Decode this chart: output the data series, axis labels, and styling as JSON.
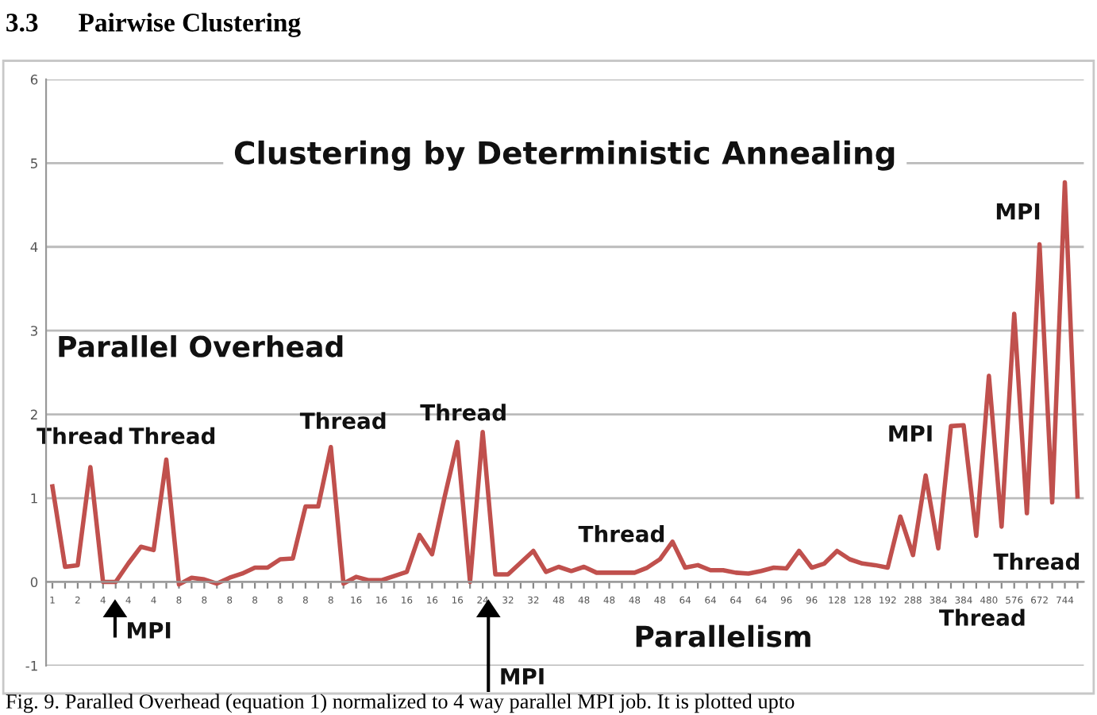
{
  "chart_data": {
    "type": "line",
    "title": "Clustering by Deterministic Annealing",
    "xlabel": "Parallelism",
    "ylabel": "Parallel Overhead",
    "categories": [
      "1",
      null,
      "2",
      null,
      "4",
      null,
      "4",
      null,
      "4",
      null,
      "8",
      null,
      "8",
      null,
      "8",
      null,
      "8",
      null,
      "8",
      null,
      "8",
      null,
      "8",
      null,
      "16",
      null,
      "16",
      null,
      "16",
      null,
      "16",
      null,
      "16",
      null,
      "24",
      null,
      "32",
      null,
      "32",
      null,
      "48",
      null,
      "48",
      null,
      "48",
      null,
      "48",
      null,
      "48",
      null,
      "64",
      null,
      "64",
      null,
      "64",
      null,
      "64",
      null,
      "96",
      null,
      "96",
      null,
      "128",
      null,
      "128",
      null,
      "192",
      null,
      "288",
      null,
      "384",
      null,
      "384",
      null,
      "480",
      null,
      "576",
      null,
      "672",
      null,
      "744",
      null
    ],
    "series": [
      {
        "color": "#c0504d",
        "values": [
          1.14,
          0.18,
          0.2,
          1.37,
          0.0,
          0.0,
          0.22,
          0.42,
          0.38,
          1.46,
          -0.03,
          0.05,
          0.03,
          -0.02,
          0.05,
          0.1,
          0.17,
          0.17,
          0.27,
          0.28,
          0.9,
          0.9,
          1.61,
          -0.02,
          0.06,
          0.02,
          0.02,
          0.07,
          0.12,
          0.56,
          0.33,
          1.02,
          1.67,
          0.0,
          1.79,
          0.09,
          0.09,
          0.23,
          0.37,
          0.12,
          0.18,
          0.13,
          0.18,
          0.11,
          0.11,
          0.11,
          0.11,
          0.17,
          0.27,
          0.48,
          0.17,
          0.2,
          0.14,
          0.14,
          0.11,
          0.1,
          0.13,
          0.17,
          0.16,
          0.37,
          0.17,
          0.22,
          0.37,
          0.27,
          0.22,
          0.2,
          0.17,
          0.78,
          0.32,
          1.27,
          0.4,
          1.86,
          1.87,
          0.55,
          2.46,
          0.66,
          3.2,
          0.82,
          4.03,
          0.95,
          4.77,
          1.02
        ]
      }
    ],
    "ylim": [
      -1,
      6
    ],
    "yticks": [
      -1,
      0,
      1,
      2,
      3,
      4,
      5,
      6
    ],
    "grid": "y",
    "marker": "none",
    "line_style": "solid",
    "annotations": [
      "3.3      Pairwise Clustering",
      "Thread",
      "Thread",
      "Thread",
      "Thread",
      "Thread",
      "MPI",
      "Thread",
      "Thread",
      "MPI",
      "MPI",
      "MPI",
      "Fig. 9. Paralled Overhead (equation 1) normalized to 4 way parallel MPI job. It is plotted upto"
    ]
  }
}
